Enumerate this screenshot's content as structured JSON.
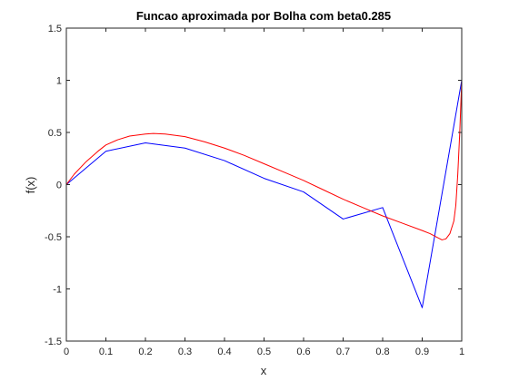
{
  "colors": {
    "background": "#ffffff",
    "axes": "#262626",
    "series_approximation": "#0000ff",
    "series_exact": "#ff0000"
  },
  "chart_data": {
    "type": "line",
    "title": "Funcao aproximada por Bolha com beta0.285",
    "xlabel": "x",
    "ylabel": "f(x)",
    "xlim": [
      0,
      1
    ],
    "ylim": [
      -1.5,
      1.5
    ],
    "xticks": [
      0,
      0.1,
      0.2,
      0.3,
      0.4,
      0.5,
      0.6,
      0.7,
      0.8,
      0.9,
      1
    ],
    "xtick_labels": [
      "0",
      "0.1",
      "0.2",
      "0.3",
      "0.4",
      "0.5",
      "0.6",
      "0.7",
      "0.8",
      "0.9",
      "1"
    ],
    "yticks": [
      -1.5,
      -1,
      -0.5,
      0,
      0.5,
      1,
      1.5
    ],
    "ytick_labels": [
      "-1.5",
      "-1",
      "-0.5",
      "0",
      "0.5",
      "1",
      "1.5"
    ],
    "grid": false,
    "box": true,
    "series": [
      {
        "color": "#0000ff",
        "x": [
          0,
          0.1,
          0.2,
          0.3,
          0.4,
          0.5,
          0.6,
          0.7,
          0.8,
          0.9,
          1.0
        ],
        "y": [
          0,
          0.32,
          0.4,
          0.35,
          0.23,
          0.06,
          -0.07,
          -0.33,
          -0.22,
          -1.18,
          1.0
        ]
      },
      {
        "color": "#ff0000",
        "x": [
          0,
          0.02,
          0.05,
          0.08,
          0.1,
          0.13,
          0.16,
          0.2,
          0.22,
          0.25,
          0.3,
          0.35,
          0.4,
          0.45,
          0.5,
          0.55,
          0.6,
          0.65,
          0.7,
          0.75,
          0.8,
          0.85,
          0.9,
          0.92,
          0.94,
          0.95,
          0.96,
          0.97,
          0.98,
          0.985,
          0.99,
          0.995,
          1.0
        ],
        "y": [
          0,
          0.1,
          0.22,
          0.32,
          0.38,
          0.43,
          0.465,
          0.485,
          0.49,
          0.485,
          0.46,
          0.41,
          0.35,
          0.28,
          0.2,
          0.12,
          0.04,
          -0.05,
          -0.14,
          -0.22,
          -0.3,
          -0.37,
          -0.44,
          -0.47,
          -0.51,
          -0.53,
          -0.52,
          -0.47,
          -0.35,
          -0.2,
          0.1,
          0.5,
          1.0
        ]
      }
    ]
  }
}
